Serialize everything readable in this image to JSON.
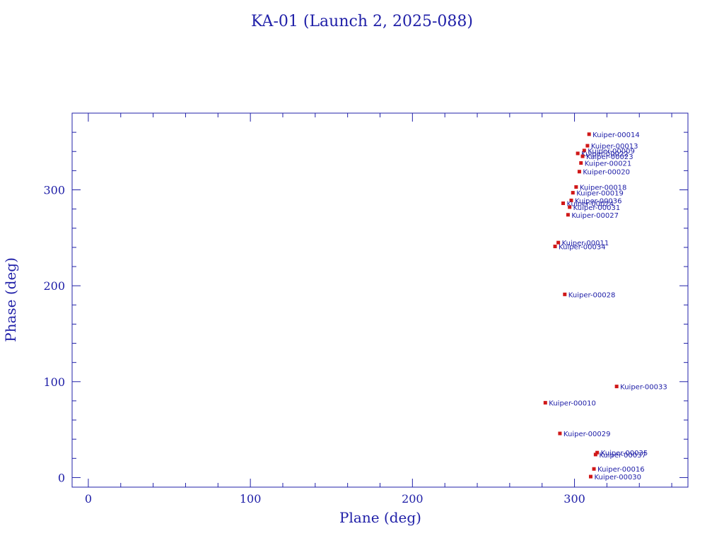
{
  "chart_data": {
    "type": "scatter",
    "title": "KA-01 (Launch 2, 2025-088)",
    "xlabel": "Plane (deg)",
    "ylabel": "Phase (deg)",
    "xlim": [
      -10,
      370
    ],
    "ylim": [
      -10,
      380
    ],
    "xticks": [
      0,
      100,
      200,
      300
    ],
    "yticks": [
      0,
      100,
      200,
      300
    ],
    "grid": false,
    "frame_color": "#2020a8",
    "text_color": "#2020a8",
    "marker_color": "#d01818",
    "points": [
      {
        "label": "Kuiper-00014",
        "x": 309,
        "y": 358
      },
      {
        "label": "Kuiper-00013",
        "x": 308,
        "y": 346
      },
      {
        "label": "Kuiper-00009",
        "x": 306,
        "y": 341
      },
      {
        "label": "Kuiper-00022",
        "x": 302,
        "y": 338
      },
      {
        "label": "Kuiper-00023",
        "x": 305,
        "y": 335
      },
      {
        "label": "Kuiper-00021",
        "x": 304,
        "y": 328
      },
      {
        "label": "Kuiper-00020",
        "x": 303,
        "y": 319
      },
      {
        "label": "Kuiper-00018",
        "x": 301,
        "y": 303
      },
      {
        "label": "Kuiper-00019",
        "x": 299,
        "y": 297
      },
      {
        "label": "Kuiper-00036",
        "x": 298,
        "y": 289
      },
      {
        "label": "Kuiper-00024",
        "x": 293,
        "y": 286
      },
      {
        "label": "Kuiper-00031",
        "x": 297,
        "y": 282
      },
      {
        "label": "Kuiper-00027",
        "x": 296,
        "y": 274
      },
      {
        "label": "Kuiper-00011",
        "x": 290,
        "y": 245
      },
      {
        "label": "Kuiper-00034",
        "x": 288,
        "y": 241
      },
      {
        "label": "Kuiper-00028",
        "x": 294,
        "y": 191
      },
      {
        "label": "Kuiper-00033",
        "x": 326,
        "y": 95
      },
      {
        "label": "Kuiper-00010",
        "x": 282,
        "y": 78
      },
      {
        "label": "Kuiper-00029",
        "x": 291,
        "y": 46
      },
      {
        "label": "Kuiper-00035",
        "x": 314,
        "y": 26
      },
      {
        "label": "Kuiper-00037",
        "x": 313,
        "y": 24
      },
      {
        "label": "Kuiper-00016",
        "x": 312,
        "y": 9
      },
      {
        "label": "Kuiper-00030",
        "x": 310,
        "y": 1
      }
    ]
  }
}
